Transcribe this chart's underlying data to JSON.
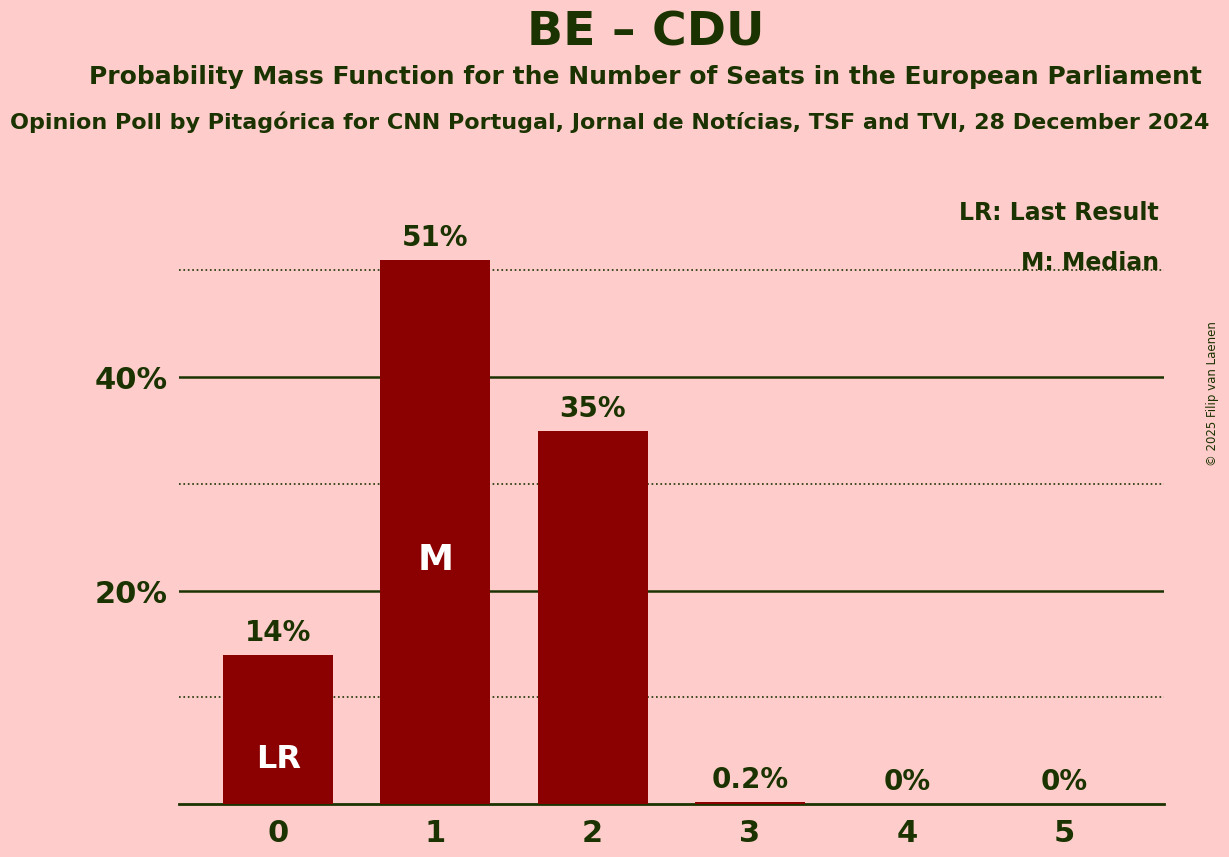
{
  "title": "BE – CDU",
  "subtitle1": "Probability Mass Function for the Number of Seats in the European Parliament",
  "subtitle2": "Opinion Poll by Pitagórica for CNN Portugal, Jornal de Notícias, TSF and TVI, 28 December 2024",
  "copyright": "© 2025 Filip van Laenen",
  "categories": [
    0,
    1,
    2,
    3,
    4,
    5
  ],
  "values": [
    14,
    51,
    35,
    0.2,
    0,
    0
  ],
  "bar_labels": [
    "14%",
    "51%",
    "35%",
    "0.2%",
    "0%",
    "0%"
  ],
  "bar_color": "#8b0000",
  "background_color": "#ffcccc",
  "text_color": "#1a3300",
  "white_color": "#ffffff",
  "legend_lr": "LR: Last Result",
  "legend_m": "M: Median",
  "median_bar": 1,
  "last_result_bar": 0,
  "ylim": [
    0,
    58
  ],
  "dotted_line_y": [
    10,
    30,
    50
  ],
  "solid_line_y": [
    20,
    40
  ],
  "title_fontsize": 34,
  "subtitle1_fontsize": 18,
  "subtitle2_fontsize": 16,
  "bar_label_fontsize": 20,
  "axis_tick_fontsize": 22,
  "legend_fontsize": 17,
  "inside_label_fontsize": 26,
  "lr_fontsize": 23
}
